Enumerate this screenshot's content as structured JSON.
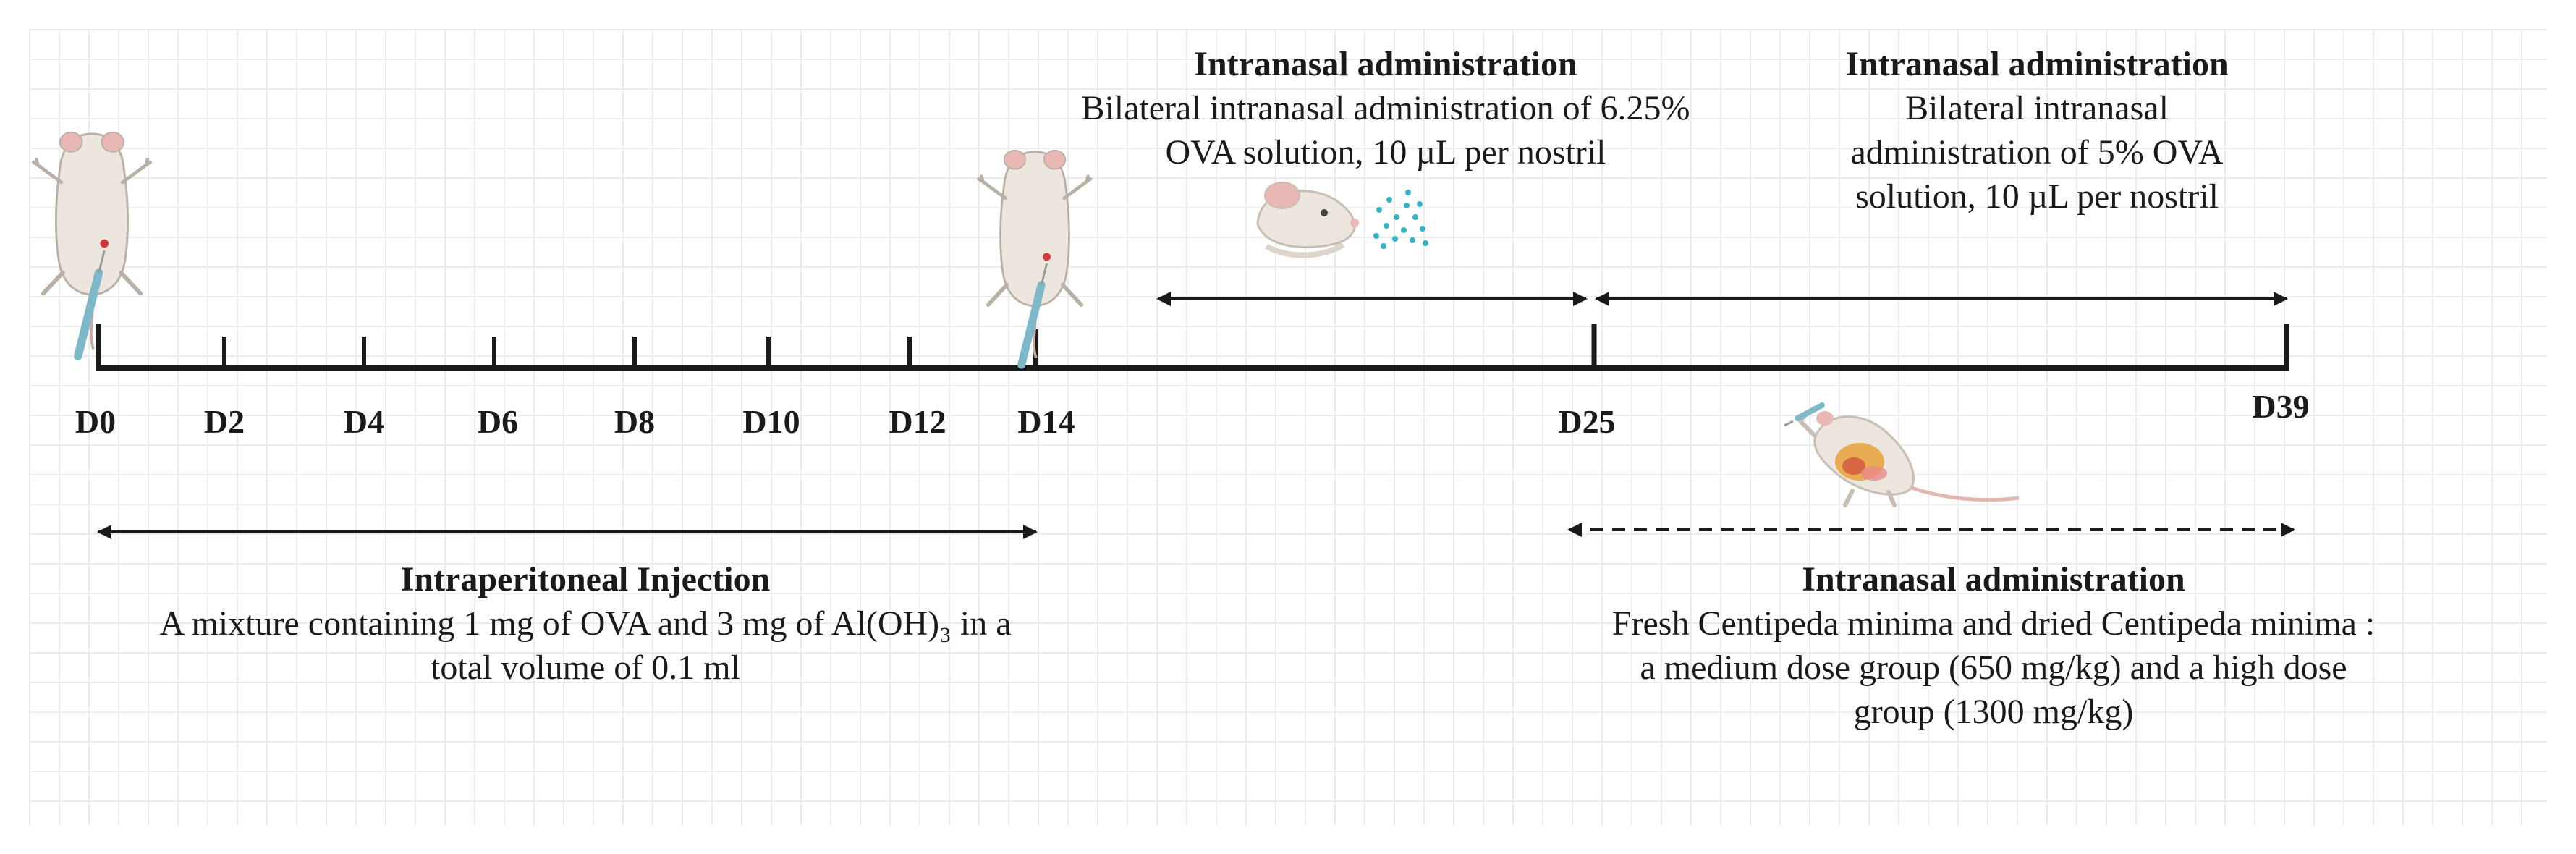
{
  "timeline": {
    "days": [
      "D0",
      "D2",
      "D4",
      "D6",
      "D8",
      "D10",
      "D12",
      "D14",
      "D25",
      "D39"
    ]
  },
  "phases": {
    "ip_injection": {
      "title": "Intraperitoneal Injection",
      "line1": "A mixture containing 1 mg of OVA and 3 mg of Al(OH)₃ in a",
      "line2": "total volume of 0.1 ml"
    },
    "intranasal_1": {
      "title": "Intranasal administration",
      "line1": "Bilateral intranasal administration of 6.25%",
      "line2": "OVA solution, 10 µL per nostril"
    },
    "intranasal_2": {
      "title": "Intranasal administration",
      "line1": "Bilateral intranasal",
      "line2": "administration of 5% OVA",
      "line3": "solution, 10 µL per nostril"
    },
    "treatment": {
      "title": "Intranasal administration",
      "line1": "Fresh Centipeda minima and dried Centipeda minima :",
      "line2": "a medium dose group (650 mg/kg) and a high dose",
      "line3": "group (1300 mg/kg)"
    }
  },
  "colors": {
    "axis": "#1a1a1a",
    "mouse_body": "#ece6df",
    "mouse_outline": "#b9b0a6",
    "mouse_ear": "#e9b7b4",
    "syringe": "#7fb9c9",
    "droplets": "#39b3c4",
    "organ": "#e9a13b"
  },
  "icons": [
    "mouse-injection-icon-d0",
    "mouse-injection-icon-d14",
    "mouse-head-icon",
    "nasal-spray-icon",
    "mouse-dissection-icon"
  ]
}
